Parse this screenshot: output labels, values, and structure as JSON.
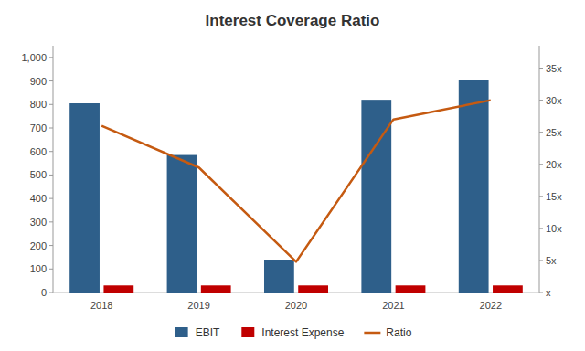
{
  "chart_data": {
    "type": "bar",
    "title": "Interest Coverage Ratio",
    "categories": [
      "2018",
      "2019",
      "2020",
      "2021",
      "2022"
    ],
    "series": [
      {
        "name": "EBIT",
        "type": "bar",
        "color": "#2E5F8A",
        "values": [
          805,
          585,
          140,
          820,
          905
        ]
      },
      {
        "name": "Interest Expense",
        "type": "bar",
        "color": "#C00000",
        "values": [
          30,
          30,
          30,
          30,
          30
        ]
      },
      {
        "name": "Ratio",
        "type": "line",
        "axis": "y2",
        "color": "#C55A11",
        "values": [
          26.0,
          19.5,
          4.8,
          27.0,
          30.0
        ]
      }
    ],
    "ylim": [
      0,
      1050
    ],
    "yticks": [
      0,
      100,
      200,
      300,
      400,
      500,
      600,
      700,
      800,
      900,
      {
        "value": 1000,
        "label": "1,000"
      }
    ],
    "y2lim": [
      0,
      38.5
    ],
    "y2ticks": [
      {
        "value": 0,
        "label": "x"
      },
      {
        "value": 5,
        "label": "5x"
      },
      {
        "value": 10,
        "label": "10x"
      },
      {
        "value": 15,
        "label": "15x"
      },
      {
        "value": 20,
        "label": "20x"
      },
      {
        "value": 25,
        "label": "25x"
      },
      {
        "value": 30,
        "label": "30x"
      },
      {
        "value": 35,
        "label": "35x"
      }
    ],
    "grid": false,
    "legend": "bottom"
  }
}
